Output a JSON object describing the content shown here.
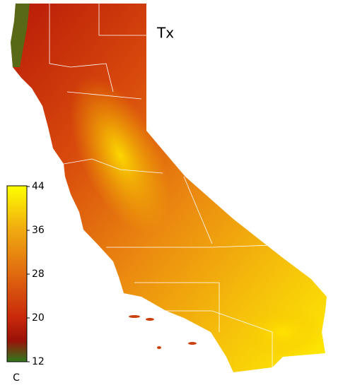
{
  "title": "Tx",
  "colorbar": {
    "unit": "C",
    "lim": [
      12,
      44
    ],
    "ticks": [
      12,
      20,
      28,
      36,
      44
    ]
  }
}
